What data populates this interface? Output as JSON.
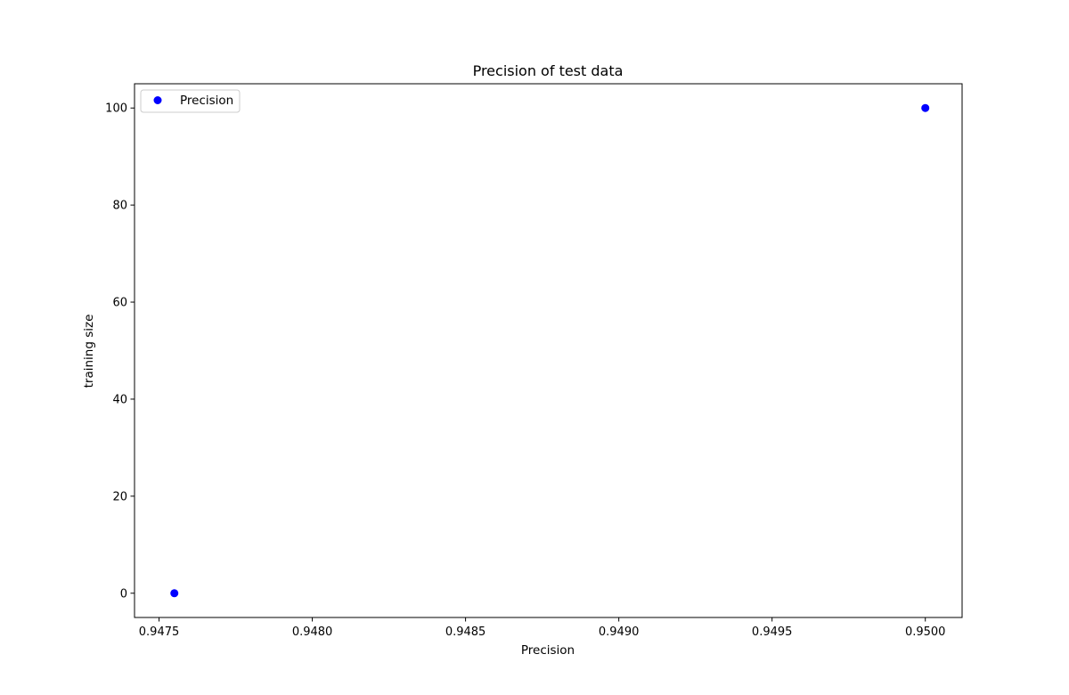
{
  "chart_data": {
    "type": "scatter",
    "title": "Precision of test data",
    "xlabel": "Precision",
    "ylabel": "training size",
    "xlim": [
      0.94742,
      0.95012
    ],
    "ylim": [
      -5,
      105
    ],
    "xticks": [
      0.9475,
      0.948,
      0.9485,
      0.949,
      0.9495,
      0.95
    ],
    "xtick_labels": [
      "0.9475",
      "0.9480",
      "0.9485",
      "0.9490",
      "0.9495",
      "0.9500"
    ],
    "yticks": [
      0,
      20,
      40,
      60,
      80,
      100
    ],
    "ytick_labels": [
      "0",
      "20",
      "40",
      "60",
      "80",
      "100"
    ],
    "grid": false,
    "legend_position": "upper-left",
    "series": [
      {
        "name": "Precision",
        "color": "#0000ff",
        "marker": "circle",
        "points": [
          {
            "x": 0.94755,
            "y": 0
          },
          {
            "x": 0.95,
            "y": 100
          }
        ]
      }
    ]
  }
}
